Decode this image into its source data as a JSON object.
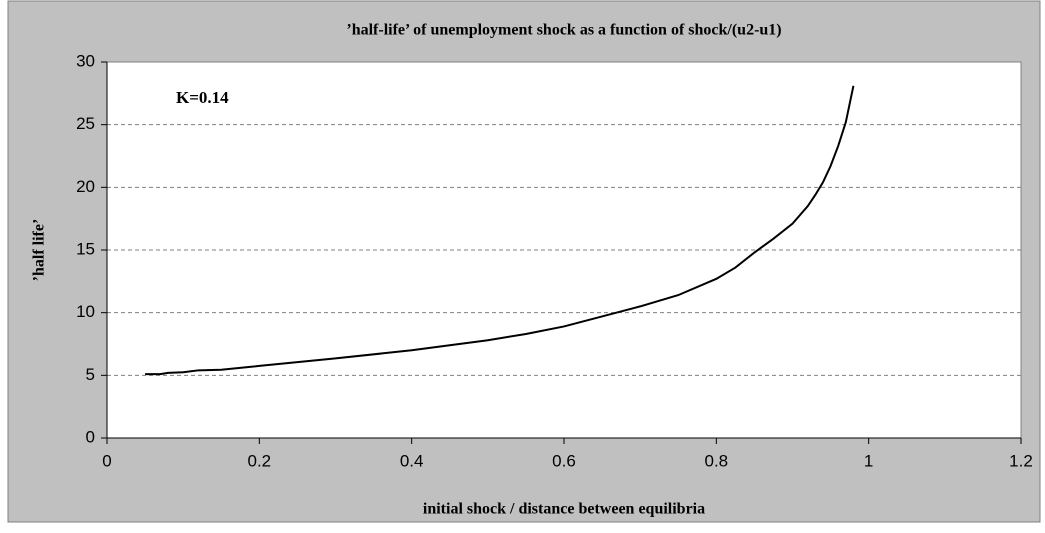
{
  "chart_data": {
    "type": "line",
    "title": "’half-life’ of unemployment shock as a function of shock/(u2-u1)",
    "x_label": "initial shock / distance between equilibria",
    "y_label": "’half life’",
    "annotation": "K=0.14",
    "x": [
      0.05,
      0.07,
      0.08,
      0.1,
      0.12,
      0.15,
      0.2,
      0.3,
      0.4,
      0.5,
      0.55,
      0.6,
      0.65,
      0.7,
      0.75,
      0.8,
      0.825,
      0.85,
      0.875,
      0.9,
      0.92,
      0.93,
      0.94,
      0.95,
      0.96,
      0.97,
      0.98
    ],
    "values": [
      5.1,
      5.1,
      5.2,
      5.25,
      5.4,
      5.45,
      5.75,
      6.35,
      7.0,
      7.8,
      8.3,
      8.9,
      9.7,
      10.5,
      11.4,
      12.7,
      13.6,
      14.8,
      15.9,
      17.1,
      18.5,
      19.4,
      20.4,
      21.7,
      23.3,
      25.2,
      28.1
    ],
    "color": "#000000",
    "xlim": [
      0,
      1.2
    ],
    "xticks": [
      0,
      0.2,
      0.4,
      0.6,
      0.8,
      1,
      1.2
    ],
    "ylim": [
      0,
      30
    ],
    "yticks": [
      0,
      5,
      10,
      15,
      20,
      25,
      30
    ],
    "grid": true
  }
}
